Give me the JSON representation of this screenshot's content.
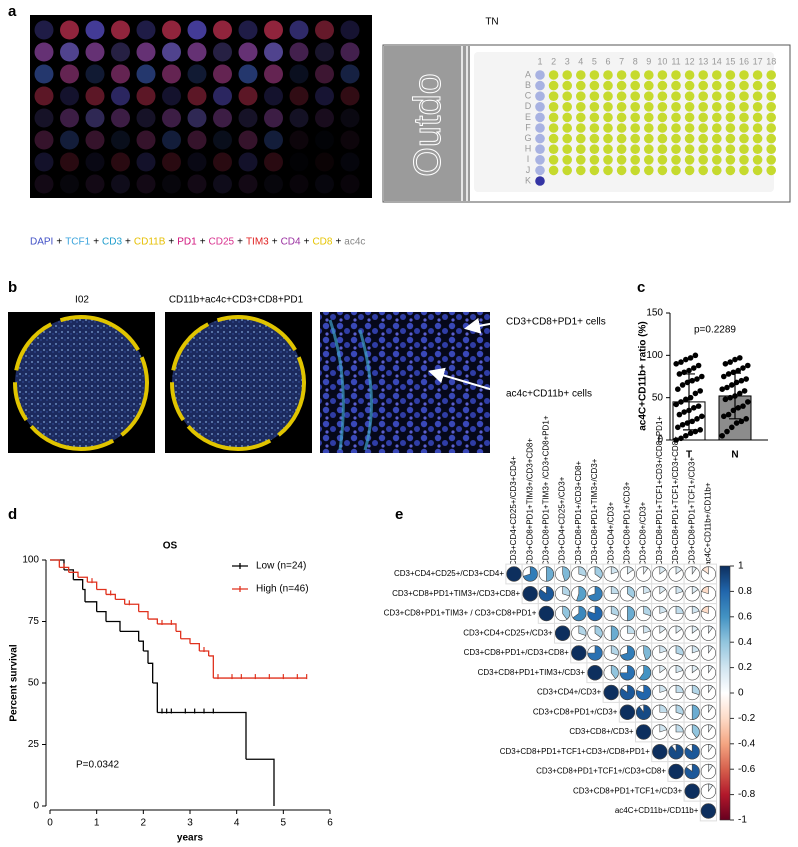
{
  "panel_labels": [
    "a",
    "b",
    "c",
    "d",
    "e"
  ],
  "figure_a": {
    "separator": "+",
    "legend": [
      {
        "text": "DAPI",
        "color": "#3f4fc6"
      },
      {
        "text": "TCF1",
        "color": "#3aa3dc"
      },
      {
        "text": "CD3",
        "color": "#1c9ccc"
      },
      {
        "text": "CD11B",
        "color": "#e6bf00"
      },
      {
        "text": "PD1",
        "color": "#d0107a"
      },
      {
        "text": "CD25",
        "color": "#d8308e"
      },
      {
        "text": "TIM3",
        "color": "#e02020"
      },
      {
        "text": "CD4",
        "color": "#9a30a0"
      },
      {
        "text": "CD8",
        "color": "#e6c400"
      },
      {
        "text": "ac4c",
        "color": "#888888"
      }
    ],
    "plate": {
      "title": "TN",
      "brand": "Outdo",
      "columns": [
        1,
        2,
        3,
        4,
        5,
        6,
        7,
        8,
        9,
        10,
        11,
        12,
        13,
        14,
        15,
        16,
        17,
        18
      ],
      "rows": [
        {
          "label": "A",
          "wells": 18
        },
        {
          "label": "B",
          "wells": 18
        },
        {
          "label": "C",
          "wells": 18
        },
        {
          "label": "D",
          "wells": 18
        },
        {
          "label": "E",
          "wells": 18
        },
        {
          "label": "F",
          "wells": 18
        },
        {
          "label": "G",
          "wells": 18
        },
        {
          "label": "H",
          "wells": 18
        },
        {
          "label": "I",
          "wells": 18
        },
        {
          "label": "J",
          "wells": 18
        },
        {
          "label": "K",
          "wells": 1
        }
      ],
      "colors": {
        "reference": "#a8b2e2",
        "tissue": "#c6da2e",
        "marker": "#3434a4"
      }
    }
  },
  "figure_b": {
    "titles": [
      "I02",
      "CD11b+ac4c+CD3+CD8+PD1"
    ],
    "annotations": [
      "CD3+CD8+PD1+ cells",
      "ac4c+CD11b+ cells"
    ]
  },
  "chart_data": [
    {
      "type": "bar",
      "categories": [
        "T",
        "N"
      ],
      "values": [
        45,
        52
      ],
      "errors": [
        33,
        27
      ],
      "points": [
        [
          0,
          2,
          5,
          8,
          10,
          12,
          15,
          18,
          20,
          22,
          25,
          28,
          30,
          33,
          35,
          38,
          40,
          42,
          45,
          48,
          50,
          55,
          58,
          60,
          65,
          68,
          70,
          72,
          75,
          78,
          80,
          82,
          85,
          88,
          90,
          92,
          95,
          97,
          100
        ],
        [
          5,
          10,
          15,
          20,
          22,
          25,
          28,
          30,
          35,
          38,
          40,
          45,
          48,
          50,
          52,
          55,
          58,
          60,
          62,
          65,
          68,
          70,
          72,
          75,
          78,
          80,
          82,
          85,
          88,
          90,
          92,
          95,
          97
        ]
      ],
      "colors": [
        "#ffffff",
        "#8c8c8c"
      ],
      "ylabel": "ac4C+CD11b+ ratio (%)",
      "annotation": "p=0.2289",
      "ylim": [
        0,
        150
      ],
      "yticks": [
        0,
        50,
        100,
        150
      ]
    },
    {
      "type": "survival",
      "title": "OS",
      "xlabel": "years",
      "ylabel": "Percent survival",
      "annotation": "P=0.0342",
      "xlim": [
        0,
        6
      ],
      "xticks": [
        0,
        1,
        2,
        3,
        4,
        5,
        6
      ],
      "ylim": [
        0,
        100
      ],
      "yticks": [
        0,
        25,
        50,
        75,
        100
      ],
      "series": [
        {
          "name": "Low (n=24)",
          "color": "#000000",
          "x": [
            0,
            0.3,
            0.5,
            0.7,
            0.75,
            1.0,
            1.2,
            1.5,
            1.9,
            2.0,
            2.1,
            2.2,
            2.3,
            4.2,
            4.8
          ],
          "values": [
            100,
            96,
            92,
            88,
            83,
            79,
            75,
            71,
            67,
            63,
            58,
            50,
            38,
            19,
            0
          ],
          "censored": [
            2.4,
            2.5,
            2.6,
            2.9,
            3.1,
            3.3,
            3.5
          ]
        },
        {
          "name": "High (n=46)",
          "color": "#e0321e",
          "x": [
            0,
            0.2,
            0.4,
            0.6,
            0.8,
            1.0,
            1.2,
            1.4,
            1.6,
            1.9,
            2.1,
            2.3,
            2.7,
            2.8,
            3.0,
            3.2,
            3.4,
            3.5,
            5.5
          ],
          "values": [
            100,
            97,
            95,
            93,
            91,
            88,
            86,
            84,
            82,
            79,
            76,
            74,
            71,
            68,
            66,
            63,
            61,
            52,
            52
          ],
          "censored": [
            0.3,
            0.9,
            1.3,
            1.7,
            2.4,
            2.6,
            3.3,
            3.6,
            3.9,
            4.1,
            4.4,
            4.7,
            5.0,
            5.3,
            5.5
          ]
        }
      ]
    },
    {
      "type": "correlogram",
      "row_labels": [
        "CD3+CD4+CD25+/CD3+CD4+",
        "CD3+CD8+PD1+TIM3+/CD3+CD8+",
        "CD3+CD8+PD1+TIM3+ / CD3+CD8+PD1+",
        "CD3+CD4+CD25+/CD3+",
        "CD3+CD8+PD1+/CD3+CD8+",
        "CD3+CD8+PD1+TIM3+/CD3+",
        "CD3+CD4+/CD3+",
        "CD3+CD8+PD1+/CD3+",
        "CD3+CD8+/CD3+",
        "CD3+CD8+PD1+TCF1+CD3+/CD8+PD1+",
        "CD3+CD8+PD1+TCF1+/CD3+CD8+",
        "CD3+CD8+PD1+TCF1+/CD3+",
        "ac4C+CD11b+/CD11b+"
      ],
      "col_labels": [
        "CD3+CD4+CD25+/CD3+CD4+",
        "CD3+CD8+PD1+TIM3+/CD3+CD8+",
        "CD3+CD8+PD1+TIM3+ /CD3+CD8+PD1+",
        "CD3+CD4+CD25+/CD3+",
        "CD3+CD8+PD1+/CD3+CD8+",
        "CD3+CD8+PD1+TIM3+/CD3+",
        "CD3+CD4+/CD3+",
        "CD3+CD8+PD1+/CD3+",
        "CD3+CD8+/CD3+",
        "CD3+CD8+PD1+TCF1+CD3+/CD8+PD1+",
        "CD3+CD8+PD1+TCF1+/CD3+CD8+",
        "CD3+CD8+PD1+TCF1+/CD3+",
        "ac4C+CD11b+/CD11b+"
      ],
      "matrix": [
        [
          1,
          0.7,
          0.5,
          0.45,
          0.3,
          0.35,
          0.2,
          0.15,
          0.1,
          0.15,
          0.15,
          0.1,
          -0.15
        ],
        [
          null,
          1,
          0.85,
          0.3,
          0.55,
          0.7,
          0.25,
          0.35,
          0.2,
          0.15,
          0.2,
          0.15,
          -0.2
        ],
        [
          null,
          null,
          1,
          0.4,
          0.65,
          0.8,
          0.3,
          0.5,
          0.3,
          0.2,
          0.25,
          0.2,
          -0.2
        ],
        [
          null,
          null,
          null,
          1,
          0.3,
          0.35,
          0.5,
          0.25,
          0.2,
          0.15,
          0.15,
          0.15,
          0.1
        ],
        [
          null,
          null,
          null,
          null,
          1,
          0.75,
          0.3,
          0.7,
          0.45,
          0.2,
          0.3,
          0.2,
          0.1
        ],
        [
          null,
          null,
          null,
          null,
          null,
          1,
          0.4,
          0.75,
          0.6,
          0.15,
          0.2,
          0.15,
          0.1
        ],
        [
          null,
          null,
          null,
          null,
          null,
          null,
          1,
          0.85,
          0.8,
          0.2,
          0.25,
          0.3,
          0.1
        ],
        [
          null,
          null,
          null,
          null,
          null,
          null,
          null,
          1,
          0.9,
          0.25,
          0.3,
          0.5,
          0.1
        ],
        [
          null,
          null,
          null,
          null,
          null,
          null,
          null,
          null,
          1,
          0.2,
          0.25,
          0.4,
          0.1
        ],
        [
          null,
          null,
          null,
          null,
          null,
          null,
          null,
          null,
          null,
          1,
          0.9,
          0.85,
          0.1
        ],
        [
          null,
          null,
          null,
          null,
          null,
          null,
          null,
          null,
          null,
          null,
          1,
          0.85,
          0.1
        ],
        [
          null,
          null,
          null,
          null,
          null,
          null,
          null,
          null,
          null,
          null,
          null,
          1,
          0.1
        ],
        [
          null,
          null,
          null,
          null,
          null,
          null,
          null,
          null,
          null,
          null,
          null,
          null,
          1
        ]
      ],
      "zlim": [
        -1,
        1
      ],
      "zticks": [
        1,
        0.8,
        0.6,
        0.4,
        0.2,
        0,
        -0.2,
        -0.4,
        -0.6,
        -0.8,
        -1
      ],
      "colorscale": [
        "#67001f",
        "#b2182b",
        "#d6604d",
        "#f4a582",
        "#fddbc7",
        "#ffffff",
        "#d1e5f0",
        "#92c5de",
        "#4393c3",
        "#2166ac",
        "#0d2f5e"
      ]
    }
  ]
}
